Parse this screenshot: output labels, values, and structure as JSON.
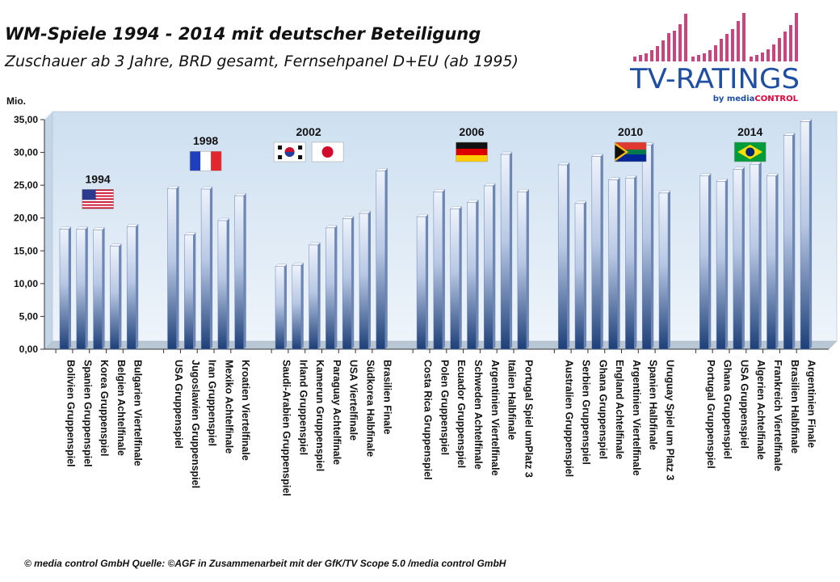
{
  "header": {
    "title": "WM-Spiele 1994 - 2014 mit deutscher Beteiligung",
    "subtitle": "Zuschauer ab 3 Jahre, BRD gesamt, Fernsehpanel D+EU (ab 1995)"
  },
  "logo": {
    "main": "TV-RATINGS",
    "by": "by media",
    "control": "CONTROL"
  },
  "footer": "© media control GmbH  Quelle: ©AGF in Zusammenarbeit mit der GfK/TV Scope 5.0 /media control GmbH",
  "colors": {
    "plot_bg": "#cfdff0",
    "bar_light": "#e8eef8",
    "bar_dark": "#1d3f78",
    "logo_blue": "#1f4fa3",
    "logo_pink": "#c9457e",
    "logo_red": "#e3003a"
  },
  "chart_data": {
    "type": "bar",
    "ylabel": "Mio.",
    "ylim": [
      0,
      35
    ],
    "yticks": [
      "0,00",
      "5,00",
      "10,00",
      "15,00",
      "20,00",
      "25,00",
      "30,00",
      "35,00"
    ],
    "grid": false,
    "groups": [
      {
        "year": "1994",
        "flags": [
          "usa"
        ],
        "games": [
          {
            "label": "Bolivien Gruppenspiel",
            "value": 18.3
          },
          {
            "label": "Spanien Gruppenspiel",
            "value": 18.3
          },
          {
            "label": "Korea Gruppenspiel",
            "value": 18.2
          },
          {
            "label": "Belgien Achtelfinale",
            "value": 15.7
          },
          {
            "label": "Bulgarien Viertelfinale",
            "value": 18.7
          }
        ]
      },
      {
        "year": "1998",
        "flags": [
          "france"
        ],
        "games": [
          {
            "label": "USA Gruppenspiel",
            "value": 24.5
          },
          {
            "label": "Jugoslawien Gruppenspiel",
            "value": 17.4
          },
          {
            "label": "Iran Gruppenspiel",
            "value": 24.4
          },
          {
            "label": "Mexiko Achtelfinale",
            "value": 19.6
          },
          {
            "label": "Kroatien Viertelfinale",
            "value": 23.4
          }
        ]
      },
      {
        "year": "2002",
        "flags": [
          "korea",
          "japan"
        ],
        "games": [
          {
            "label": "Saudi-Arabien Gruppenspiel",
            "value": 12.6
          },
          {
            "label": "Irland Gruppenspiel",
            "value": 12.8
          },
          {
            "label": "Kamerun Gruppenspiel",
            "value": 15.9
          },
          {
            "label": "Paraguay Achtelfinale",
            "value": 18.5
          },
          {
            "label": "USA Viertelfinale",
            "value": 19.9
          },
          {
            "label": "Südkorea Halbfinale",
            "value": 20.7
          },
          {
            "label": "Brasilien Finale",
            "value": 27.2
          }
        ]
      },
      {
        "year": "2006",
        "flags": [
          "germany"
        ],
        "games": [
          {
            "label": "Costa Rica Gruppenspiel",
            "value": 20.2
          },
          {
            "label": "Polen Gruppenspiel",
            "value": 24.0
          },
          {
            "label": "Ecuador Gruppenspiel",
            "value": 21.4
          },
          {
            "label": "Schweden Achtelfinale",
            "value": 22.4
          },
          {
            "label": "Argentinien Viertelfinale",
            "value": 24.9
          },
          {
            "label": "Italien Halbfinale",
            "value": 29.7
          },
          {
            "label": "Portugal Spiel umPlatz 3",
            "value": 24.0
          }
        ]
      },
      {
        "year": "2010",
        "flags": [
          "southafrica"
        ],
        "games": [
          {
            "label": "Australien Gruppenspiel",
            "value": 28.1
          },
          {
            "label": "Serbien Gruppenspiel",
            "value": 22.2
          },
          {
            "label": "Ghana Gruppenspiel",
            "value": 29.4
          },
          {
            "label": "England Achtelfinale",
            "value": 25.8
          },
          {
            "label": "Argentinien Viertelfinale",
            "value": 26.1
          },
          {
            "label": "Spanien Halbfinale",
            "value": 31.1
          },
          {
            "label": "Uruguay Spiel um Platz 3",
            "value": 23.8
          }
        ]
      },
      {
        "year": "2014",
        "flags": [
          "brazil"
        ],
        "games": [
          {
            "label": "Portugal Gruppenspiel",
            "value": 26.4
          },
          {
            "label": "Ghana Gruppenspiel",
            "value": 25.6
          },
          {
            "label": "USA Gruppenspiel",
            "value": 27.4
          },
          {
            "label": "Algerien Achtelfinale",
            "value": 28.2
          },
          {
            "label": "Frankreich Viertelfinale",
            "value": 26.4
          },
          {
            "label": "Brasilien Halbfinale",
            "value": 32.6
          },
          {
            "label": "Argentinien Finale",
            "value": 34.7
          }
        ]
      }
    ]
  }
}
